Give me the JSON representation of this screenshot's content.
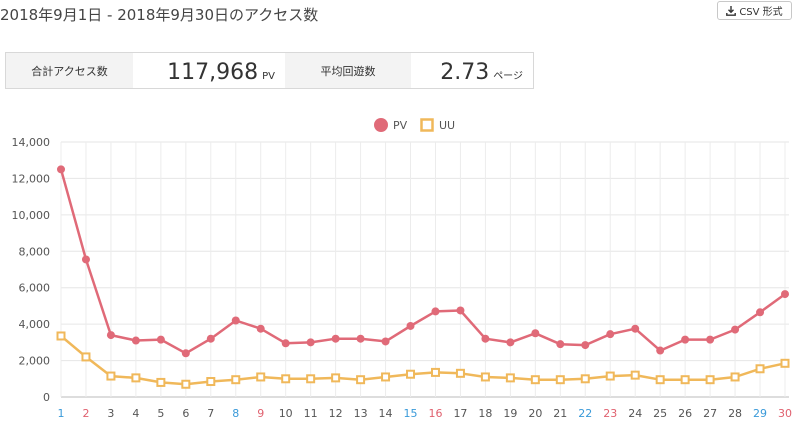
{
  "header": {
    "title": "2018年9月1日 - 2018年9月30日のアクセス数",
    "csv_button_label": "CSV 形式"
  },
  "stats": {
    "total_label": "合計アクセス数",
    "total_value": "117,968",
    "total_unit": "PV",
    "avg_label": "平均回遊数",
    "avg_value": "2.73",
    "avg_unit": "ページ"
  },
  "colors": {
    "pv": "#e06a78",
    "uu": "#f0b85a",
    "saturday": "#3a9ad9",
    "sunday": "#e0616f",
    "weekday": "#555555"
  },
  "chart_data": {
    "type": "line",
    "x": [
      "1",
      "2",
      "3",
      "4",
      "5",
      "6",
      "7",
      "8",
      "9",
      "10",
      "11",
      "12",
      "13",
      "14",
      "15",
      "16",
      "17",
      "18",
      "19",
      "20",
      "21",
      "22",
      "23",
      "24",
      "25",
      "26",
      "27",
      "28",
      "29",
      "30"
    ],
    "x_colors": [
      "saturday",
      "sunday",
      "weekday",
      "weekday",
      "weekday",
      "weekday",
      "weekday",
      "saturday",
      "sunday",
      "weekday",
      "weekday",
      "weekday",
      "weekday",
      "weekday",
      "saturday",
      "sunday",
      "weekday",
      "weekday",
      "weekday",
      "weekday",
      "weekday",
      "saturday",
      "sunday",
      "weekday",
      "weekday",
      "weekday",
      "weekday",
      "weekday",
      "saturday",
      "sunday"
    ],
    "series": [
      {
        "name": "PV",
        "values": [
          12500,
          7550,
          3400,
          3100,
          3150,
          2400,
          3200,
          4200,
          3750,
          2950,
          3000,
          3200,
          3200,
          3050,
          3900,
          4700,
          4750,
          3200,
          3000,
          3500,
          2900,
          2850,
          3450,
          3750,
          2550,
          3150,
          3150,
          3700,
          4650,
          5650
        ]
      },
      {
        "name": "UU",
        "values": [
          3350,
          2200,
          1150,
          1050,
          800,
          700,
          850,
          950,
          1100,
          1000,
          1000,
          1050,
          950,
          1100,
          1250,
          1350,
          1300,
          1100,
          1050,
          950,
          950,
          1000,
          1150,
          1200,
          950,
          950,
          950,
          1100,
          1550,
          1850
        ]
      }
    ],
    "y_ticks": [
      "0",
      "2,000",
      "4,000",
      "6,000",
      "8,000",
      "10,000",
      "12,000",
      "14,000"
    ],
    "ylim": [
      0,
      14000
    ],
    "grid": true,
    "legend_position": "top-center"
  }
}
